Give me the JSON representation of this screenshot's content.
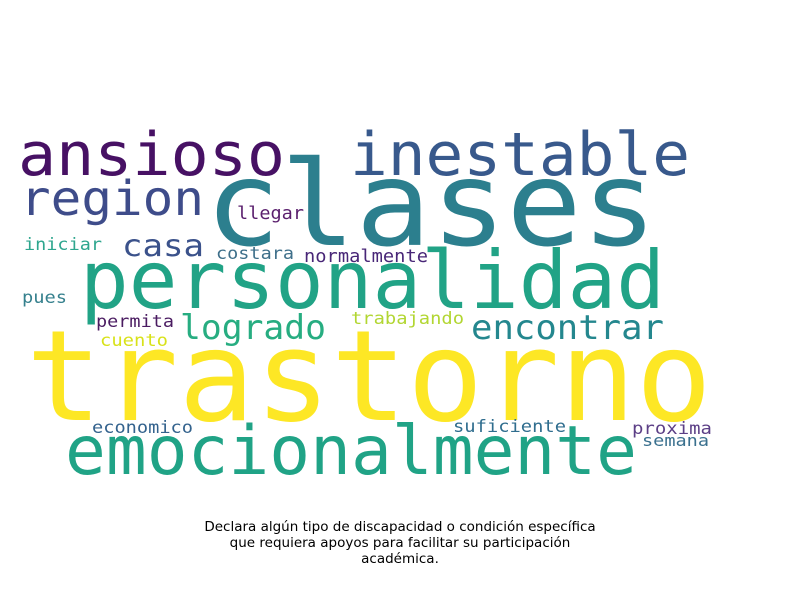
{
  "wordcloud": {
    "words": [
      {
        "text": "trastorno",
        "color": "#fde725"
      },
      {
        "text": "clases",
        "color": "#2c7f8e"
      },
      {
        "text": "personalidad",
        "color": "#21a386"
      },
      {
        "text": "emocionalmente",
        "color": "#20a386"
      },
      {
        "text": "ansioso",
        "color": "#471164"
      },
      {
        "text": "inestable",
        "color": "#38598c"
      },
      {
        "text": "region",
        "color": "#3e4c8a"
      },
      {
        "text": "encontrar",
        "color": "#24878e"
      },
      {
        "text": "logrado",
        "color": "#27ad81"
      },
      {
        "text": "casa",
        "color": "#3b528b"
      },
      {
        "text": "llegar",
        "color": "#5a1f6d"
      },
      {
        "text": "normalmente",
        "color": "#482677"
      },
      {
        "text": "costara",
        "color": "#3e6f8a"
      },
      {
        "text": "iniciar",
        "color": "#2ea68e"
      },
      {
        "text": "pues",
        "color": "#35808d"
      },
      {
        "text": "permita",
        "color": "#4a1b61"
      },
      {
        "text": "trabajando",
        "color": "#b2d632"
      },
      {
        "text": "cuento",
        "color": "#d8e219"
      },
      {
        "text": "economico",
        "color": "#33628d"
      },
      {
        "text": "suficiente",
        "color": "#2f6d8e"
      },
      {
        "text": "proxima",
        "color": "#5c3f86"
      },
      {
        "text": "semana",
        "color": "#3a708e"
      }
    ]
  },
  "caption": {
    "line1": "Declara algún tipo de discapacidad o condición específica",
    "line2": "que requiera apoyos para facilitar su participación",
    "line3": "académica."
  }
}
